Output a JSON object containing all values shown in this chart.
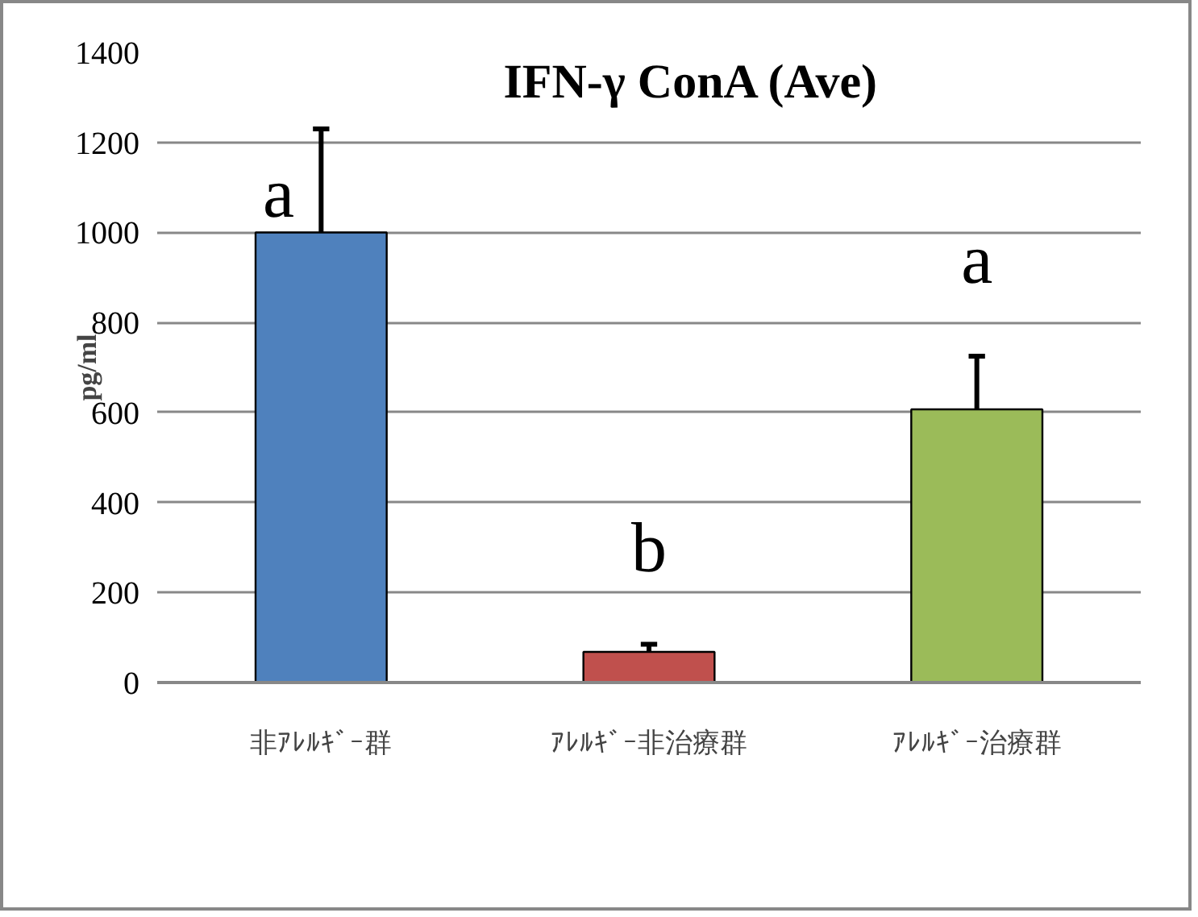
{
  "chart_data": {
    "type": "bar",
    "title": "IFN-γ ConA (Ave)",
    "ylabel": "pg/ml",
    "categories": [
      "非ｱﾚﾙｷﾞｰ群",
      "ｱﾚﾙｷﾞｰ非治療群",
      "ｱﾚﾙｷﾞｰ治療群"
    ],
    "values": [
      1000,
      68,
      607
    ],
    "colors": [
      "#4f81bd",
      "#c0504d",
      "#9bbb59"
    ],
    "errors": [
      [
        1000,
        1230
      ],
      [
        68,
        85
      ],
      [
        607,
        725
      ]
    ],
    "ylim": [
      0,
      1400
    ],
    "yticks": [
      0,
      200,
      400,
      600,
      800,
      1000,
      1200,
      1400
    ],
    "grid": "y",
    "annotations": [
      "a",
      "b",
      "a"
    ]
  }
}
